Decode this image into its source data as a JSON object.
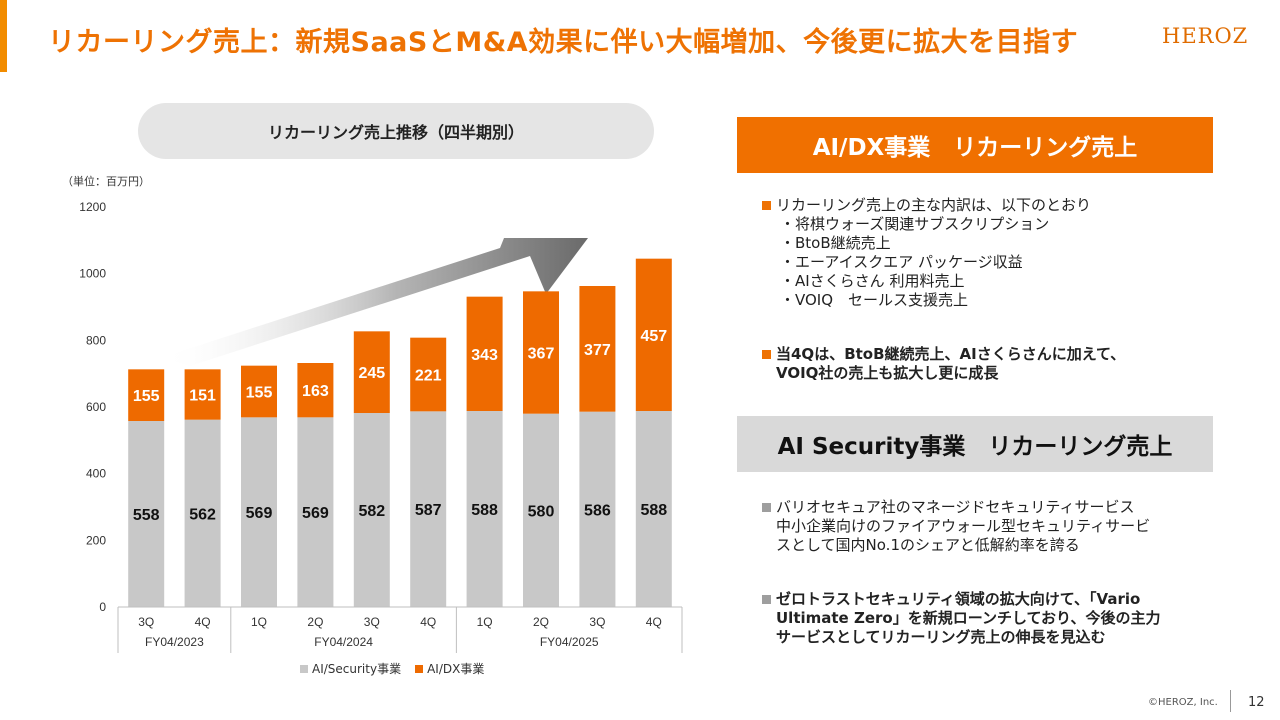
{
  "page": {
    "title": "リカーリング売上：新規SaaSとM&A効果に伴い大幅増加、今後更に拡大を目指す",
    "logo": "HEROZ"
  },
  "chart_title": "リカーリング売上推移（四半期別）",
  "unit_label": "（単位：百万円）",
  "chart_data": {
    "type": "bar",
    "stacked": true,
    "title": "リカーリング売上推移（四半期別）",
    "unit": "（単位：百万円）",
    "categories": [
      "3Q",
      "4Q",
      "1Q",
      "2Q",
      "3Q",
      "4Q",
      "1Q",
      "2Q",
      "3Q",
      "4Q"
    ],
    "fiscal_groups": [
      {
        "label": "FY04/2023",
        "span": 2
      },
      {
        "label": "FY04/2024",
        "span": 4
      },
      {
        "label": "FY04/2025",
        "span": 4
      }
    ],
    "series": [
      {
        "name": "AI/Security事業",
        "color": "#c8c8c8",
        "values": [
          558,
          562,
          569,
          569,
          582,
          587,
          588,
          580,
          586,
          588
        ]
      },
      {
        "name": "AI/DX事業",
        "color": "#ee6a00",
        "values": [
          155,
          151,
          155,
          163,
          245,
          221,
          343,
          367,
          377,
          457
        ]
      }
    ],
    "y_ticks": [
      0,
      200,
      400,
      600,
      800,
      1000,
      1200
    ],
    "ylim": [
      0,
      1200
    ],
    "grid": false,
    "legend_position": "bottom"
  },
  "right_panel": {
    "dx_header": "AI/DX事業　リカーリング売上",
    "dx_bullet1_lead": "リカーリング売上の主な内訳は、以下のとおり",
    "dx_bullet1_items": [
      "・将棋ウォーズ関連サブスクリプション",
      "・BtoB継続売上",
      "・エーアイスクエア パッケージ収益",
      "・AIさくらさん 利用料売上",
      "・VOIQ　セールス支援売上"
    ],
    "dx_bullet2_line1": "当4Qは、BtoB継続売上、AIさくらさんに加えて、",
    "dx_bullet2_line2": "VOIQ社の売上も拡大し更に成長",
    "sec_header": "AI Security事業　リカーリング売上",
    "sec_bullet1_lines": [
      "バリオセキュア社のマネージドセキュリティサービス",
      "中小企業向けのファイアウォール型セキュリティサービ",
      "スとして国内No.1のシェアと低解約率を誇る"
    ],
    "sec_bullet2_lines": [
      "ゼロトラストセキュリティ領域の拡大向けて、「Vario",
      "Ultimate Zero」を新規ローンチしており、今後の主力",
      "サービスとしてリカーリング売上の伸長を見込む"
    ]
  },
  "footer": {
    "copyright": "©HEROZ, Inc.",
    "page_number": "12"
  }
}
